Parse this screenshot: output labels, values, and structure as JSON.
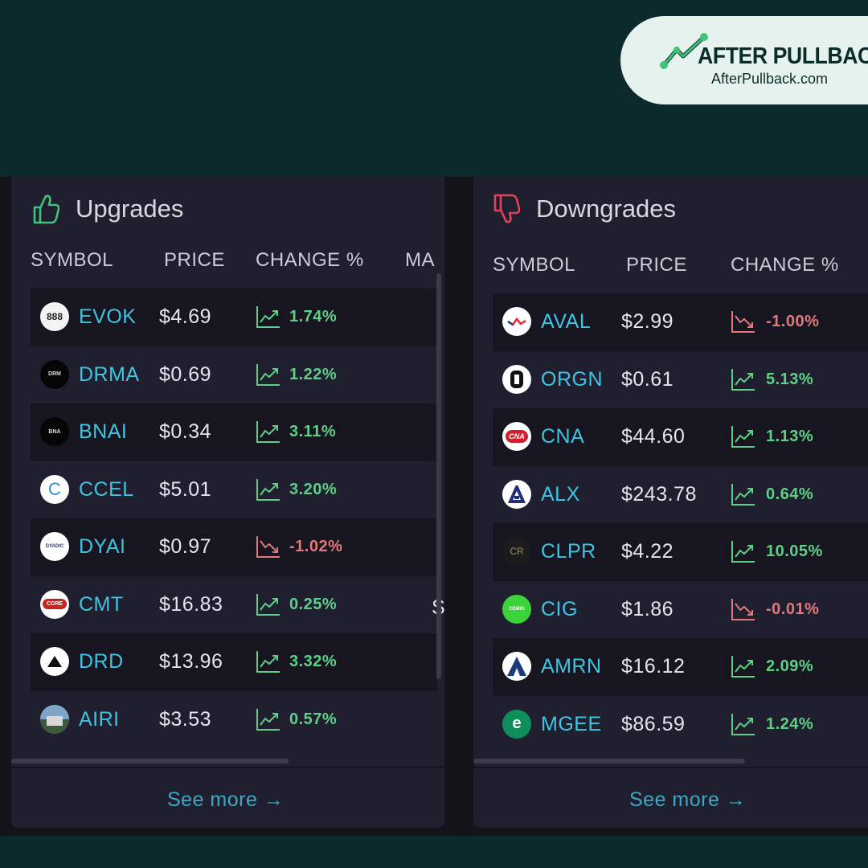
{
  "brand": {
    "name": "AFTER PULLBACK",
    "url": "AfterPullback.com",
    "colors": {
      "badge_bg": "#e6f2ee",
      "text": "#0b2d2a",
      "accent": "#3fc37a"
    }
  },
  "upgrades": {
    "title": "Upgrades",
    "icon": "thumbs-up-icon",
    "columns": [
      "SYMBOL",
      "PRICE",
      "CHANGE %",
      "MA"
    ],
    "rows": [
      {
        "symbol": "EVOK",
        "price": "$4.69",
        "change": "1.74%",
        "direction": "up",
        "logo_text": "888"
      },
      {
        "symbol": "DRMA",
        "price": "$0.69",
        "change": "1.22%",
        "direction": "up",
        "logo_text": "DRM"
      },
      {
        "symbol": "BNAI",
        "price": "$0.34",
        "change": "3.11%",
        "direction": "up",
        "logo_text": "BNA"
      },
      {
        "symbol": "CCEL",
        "price": "$5.01",
        "change": "3.20%",
        "direction": "up",
        "logo_text": "C"
      },
      {
        "symbol": "DYAI",
        "price": "$0.97",
        "change": "-1.02%",
        "direction": "down",
        "logo_text": "DYADIC"
      },
      {
        "symbol": "CMT",
        "price": "$16.83",
        "change": "0.25%",
        "direction": "up",
        "logo_text": "CORE"
      },
      {
        "symbol": "DRD",
        "price": "$13.96",
        "change": "3.32%",
        "direction": "up",
        "logo_text": ""
      },
      {
        "symbol": "AIRI",
        "price": "$3.53",
        "change": "0.57%",
        "direction": "up",
        "logo_text": ""
      }
    ],
    "clipped_cell": "S",
    "see_more": "See more →"
  },
  "downgrades": {
    "title": "Downgrades",
    "icon": "thumbs-down-icon",
    "columns": [
      "SYMBOL",
      "PRICE",
      "CHANGE %"
    ],
    "rows": [
      {
        "symbol": "AVAL",
        "price": "$2.99",
        "change": "-1.00%",
        "direction": "down",
        "logo_text": ""
      },
      {
        "symbol": "ORGN",
        "price": "$0.61",
        "change": "5.13%",
        "direction": "up",
        "logo_text": ""
      },
      {
        "symbol": "CNA",
        "price": "$44.60",
        "change": "1.13%",
        "direction": "up",
        "logo_text": "CNA"
      },
      {
        "symbol": "ALX",
        "price": "$243.78",
        "change": "0.64%",
        "direction": "up",
        "logo_text": ""
      },
      {
        "symbol": "CLPR",
        "price": "$4.22",
        "change": "10.05%",
        "direction": "up",
        "logo_text": "CR"
      },
      {
        "symbol": "CIG",
        "price": "$1.86",
        "change": "-0.01%",
        "direction": "down",
        "logo_text": "CEMIG"
      },
      {
        "symbol": "AMRN",
        "price": "$16.12",
        "change": "2.09%",
        "direction": "up",
        "logo_text": ""
      },
      {
        "symbol": "MGEE",
        "price": "$86.59",
        "change": "1.24%",
        "direction": "up",
        "logo_text": "e"
      }
    ],
    "see_more": "See more →"
  },
  "colors": {
    "up": "#5fcf87",
    "down": "#e07a7a",
    "symbol": "#3ec5e2",
    "link": "#3ea7c4"
  }
}
